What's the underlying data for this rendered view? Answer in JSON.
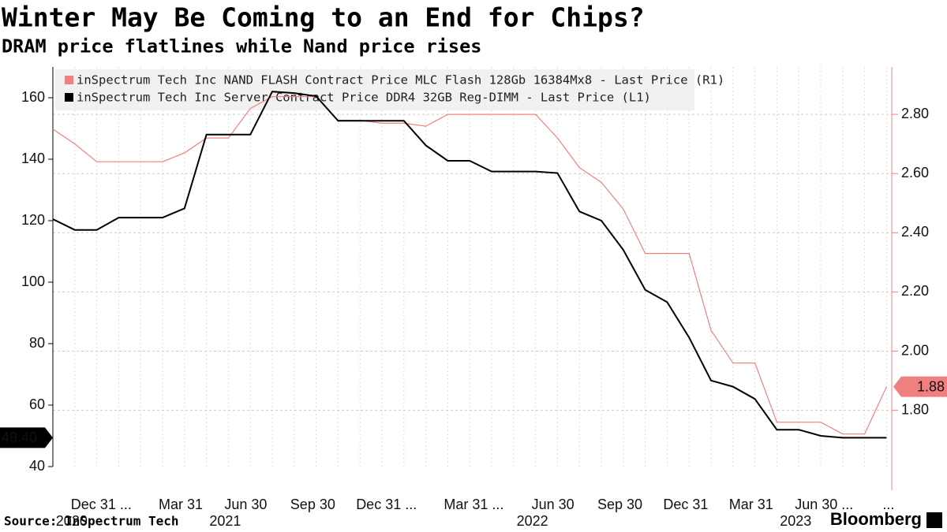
{
  "chart_data": {
    "type": "line",
    "title": "Winter May Be Coming to an End for Chips?",
    "subtitle": "DRAM price flatlines while Nand price rises",
    "source": "Source: InSpectrum Tech",
    "brand": "Bloomberg",
    "categories": [
      null,
      "Dec 31 ...",
      null,
      null,
      null,
      "Mar 31",
      null,
      null,
      "Jun 30",
      null,
      null,
      "Sep 30",
      null,
      null,
      "Dec 31 ...",
      null,
      null,
      null,
      "Mar 31 ...",
      null,
      null,
      null,
      "Jun 30",
      null,
      null,
      "Sep 30",
      null,
      null,
      "Dec 31",
      null,
      null,
      "Mar 31",
      null,
      null,
      "Jun 30 ...",
      null,
      null,
      null,
      "..."
    ],
    "years": [
      null,
      "2020",
      null,
      null,
      null,
      null,
      null,
      null,
      "2021",
      null,
      null,
      null,
      null,
      null,
      null,
      null,
      null,
      null,
      null,
      null,
      null,
      null,
      "2022",
      null,
      null,
      null,
      null,
      null,
      null,
      null,
      null,
      null,
      null,
      null,
      "2023",
      null,
      null,
      null,
      null
    ],
    "series": [
      {
        "name": "inSpectrum Tech Inc NAND FLASH Contract Price MLC Flash 128Gb 16384Mx8 - Last Price (R1)",
        "color": "#f08080",
        "axis": "y2",
        "values": [
          2.75,
          2.7,
          2.64,
          2.64,
          2.64,
          2.64,
          2.67,
          2.72,
          2.72,
          2.82,
          2.86,
          2.86,
          2.86,
          2.78,
          2.78,
          2.77,
          2.77,
          2.76,
          2.8,
          2.8,
          2.8,
          2.8,
          2.8,
          2.72,
          2.62,
          2.57,
          2.48,
          2.33,
          2.33,
          2.33,
          2.07,
          1.96,
          1.96,
          1.76,
          1.76,
          1.76,
          1.72,
          1.72,
          1.88
        ],
        "last_label": "1.88"
      },
      {
        "name": "inSpectrum Tech Inc Server Contract Price DDR4 32GB Reg-DIMM - Last Price (L1)",
        "color": "#000000",
        "axis": "y",
        "values": [
          120.5,
          117,
          117,
          121,
          121,
          121,
          124,
          148,
          148,
          148,
          162,
          161.5,
          160.5,
          152.5,
          152.5,
          152.5,
          152.5,
          144.5,
          139.5,
          139.5,
          136,
          136,
          136,
          135.5,
          123,
          120,
          110.5,
          97.5,
          93.5,
          82,
          68,
          66,
          62,
          52,
          52,
          50,
          49.4,
          49.4,
          49.4
        ],
        "last_label": "49.40"
      }
    ],
    "ylim": [
      40,
      170
    ],
    "yticks": [
      40,
      60,
      80,
      100,
      120,
      140,
      160
    ],
    "y2lim": [
      1.61,
      2.96
    ],
    "y2ticks": [
      {
        "value": 1.8,
        "label": "1.80"
      },
      {
        "value": 2.0,
        "label": "2.00"
      },
      {
        "value": 2.2,
        "label": "2.20"
      },
      {
        "value": 2.4,
        "label": "2.40"
      },
      {
        "value": 2.6,
        "label": "2.60"
      },
      {
        "value": 2.8,
        "label": "2.80"
      }
    ],
    "grid": true,
    "legend": "top-left"
  }
}
